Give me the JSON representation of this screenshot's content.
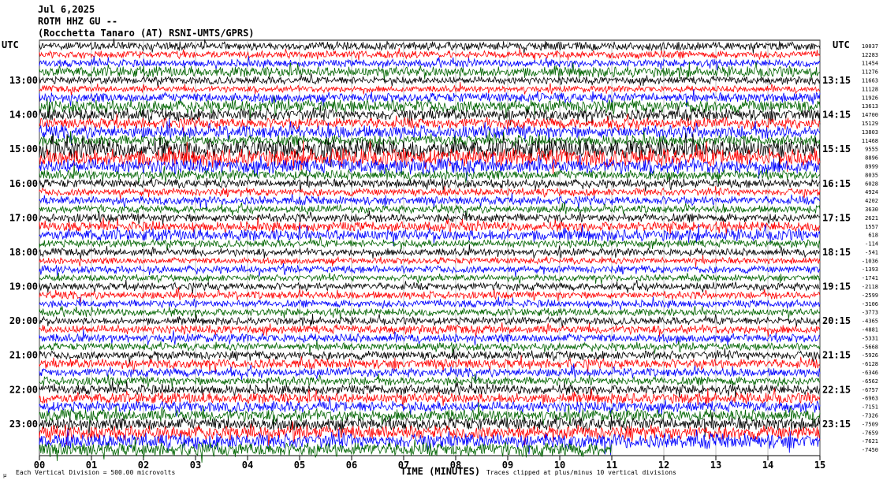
{
  "header": {
    "date": "Jul 6,2025",
    "station": "ROTM HHZ GU --",
    "location": "(Rocchetta Tanaro (AT) RSNI-UMTS/GPRS)"
  },
  "left_axis_title": "UTC",
  "right_axis_title": "UTC",
  "footer": {
    "scale_note": "Each Vertical Division = 500.00 microvolts",
    "clip_note": "Traces clipped at plus/minus 10 vertical divisions",
    "corner_mark": "µ"
  },
  "colors": {
    "trace_cycle": [
      "#000000",
      "#ff0000",
      "#0000ff",
      "#006400"
    ],
    "grid": "#808080"
  },
  "chart_data": {
    "type": "line",
    "title": "ROTM HHZ GU --",
    "xlabel": "TIME (MINUTES)",
    "ylabel": "UTC",
    "x_ticks": [
      "00",
      "01",
      "02",
      "03",
      "04",
      "05",
      "06",
      "07",
      "08",
      "09",
      "10",
      "11",
      "12",
      "13",
      "14",
      "15"
    ],
    "xlim": [
      0,
      15
    ],
    "left_hour_labels": [
      {
        "row": 4,
        "label": "13:00"
      },
      {
        "row": 8,
        "label": "14:00"
      },
      {
        "row": 12,
        "label": "15:00"
      },
      {
        "row": 16,
        "label": "16:00"
      },
      {
        "row": 20,
        "label": "17:00"
      },
      {
        "row": 24,
        "label": "18:00"
      },
      {
        "row": 28,
        "label": "19:00"
      },
      {
        "row": 32,
        "label": "20:00"
      },
      {
        "row": 36,
        "label": "21:00"
      },
      {
        "row": 40,
        "label": "22:00"
      },
      {
        "row": 44,
        "label": "23:00"
      }
    ],
    "right_hour_labels": [
      {
        "row": 4,
        "label": "13:15"
      },
      {
        "row": 8,
        "label": "14:15"
      },
      {
        "row": 12,
        "label": "15:15"
      },
      {
        "row": 16,
        "label": "16:15"
      },
      {
        "row": 20,
        "label": "17:15"
      },
      {
        "row": 24,
        "label": "18:15"
      },
      {
        "row": 28,
        "label": "19:15"
      },
      {
        "row": 32,
        "label": "20:15"
      },
      {
        "row": 36,
        "label": "21:15"
      },
      {
        "row": 40,
        "label": "22:15"
      },
      {
        "row": 44,
        "label": "23:15"
      }
    ],
    "right_offsets": [
      "10037",
      "12283",
      "11454",
      "11276",
      "11663",
      "11128",
      "11926",
      "13613",
      "14700",
      "15129",
      "13803",
      "11468",
      "9555",
      "8896",
      "8999",
      "8035",
      "6028",
      "4924",
      "4202",
      "3630",
      "2621",
      "1557",
      "618",
      "-114",
      "-541",
      "-1036",
      "-1393",
      "-1741",
      "-2118",
      "-2599",
      "-3106",
      "-3773",
      "-4365",
      "-4881",
      "-5331",
      "-5668",
      "-5926",
      "-6128",
      "-6346",
      "-6562",
      "-6757",
      "-6963",
      "-7151",
      "-7326",
      "-7509",
      "-7659",
      "-7621",
      "-7450"
    ],
    "last_row_end_minute": 11.0,
    "series": [
      {
        "row": 0,
        "amplitude": 0.4
      },
      {
        "row": 1,
        "amplitude": 0.35
      },
      {
        "row": 2,
        "amplitude": 0.35
      },
      {
        "row": 3,
        "amplitude": 0.5
      },
      {
        "row": 4,
        "amplitude": 0.35
      },
      {
        "row": 5,
        "amplitude": 0.3
      },
      {
        "row": 6,
        "amplitude": 0.45
      },
      {
        "row": 7,
        "amplitude": 0.6
      },
      {
        "row": 8,
        "amplitude": 0.55
      },
      {
        "row": 9,
        "amplitude": 0.5
      },
      {
        "row": 10,
        "amplitude": 0.6
      },
      {
        "row": 11,
        "amplitude": 0.5
      },
      {
        "row": 12,
        "amplitude": 0.9
      },
      {
        "row": 13,
        "amplitude": 0.85
      },
      {
        "row": 14,
        "amplitude": 0.7
      },
      {
        "row": 15,
        "amplitude": 0.45
      },
      {
        "row": 16,
        "amplitude": 0.4
      },
      {
        "row": 17,
        "amplitude": 0.35
      },
      {
        "row": 18,
        "amplitude": 0.4
      },
      {
        "row": 19,
        "amplitude": 0.35
      },
      {
        "row": 20,
        "amplitude": 0.4
      },
      {
        "row": 21,
        "amplitude": 0.45
      },
      {
        "row": 22,
        "amplitude": 0.55
      },
      {
        "row": 23,
        "amplitude": 0.35
      },
      {
        "row": 24,
        "amplitude": 0.35
      },
      {
        "row": 25,
        "amplitude": 0.3
      },
      {
        "row": 26,
        "amplitude": 0.35
      },
      {
        "row": 27,
        "amplitude": 0.3
      },
      {
        "row": 28,
        "amplitude": 0.35
      },
      {
        "row": 29,
        "amplitude": 0.35
      },
      {
        "row": 30,
        "amplitude": 0.35
      },
      {
        "row": 31,
        "amplitude": 0.35
      },
      {
        "row": 32,
        "amplitude": 0.35
      },
      {
        "row": 33,
        "amplitude": 0.4
      },
      {
        "row": 34,
        "amplitude": 0.4
      },
      {
        "row": 35,
        "amplitude": 0.35
      },
      {
        "row": 36,
        "amplitude": 0.4
      },
      {
        "row": 37,
        "amplitude": 0.45
      },
      {
        "row": 38,
        "amplitude": 0.4
      },
      {
        "row": 39,
        "amplitude": 0.4
      },
      {
        "row": 40,
        "amplitude": 0.45
      },
      {
        "row": 41,
        "amplitude": 0.5
      },
      {
        "row": 42,
        "amplitude": 0.5
      },
      {
        "row": 43,
        "amplitude": 0.55
      },
      {
        "row": 44,
        "amplitude": 0.6
      },
      {
        "row": 45,
        "amplitude": 0.65
      },
      {
        "row": 46,
        "amplitude": 0.7
      },
      {
        "row": 47,
        "amplitude": 0.65
      }
    ]
  }
}
